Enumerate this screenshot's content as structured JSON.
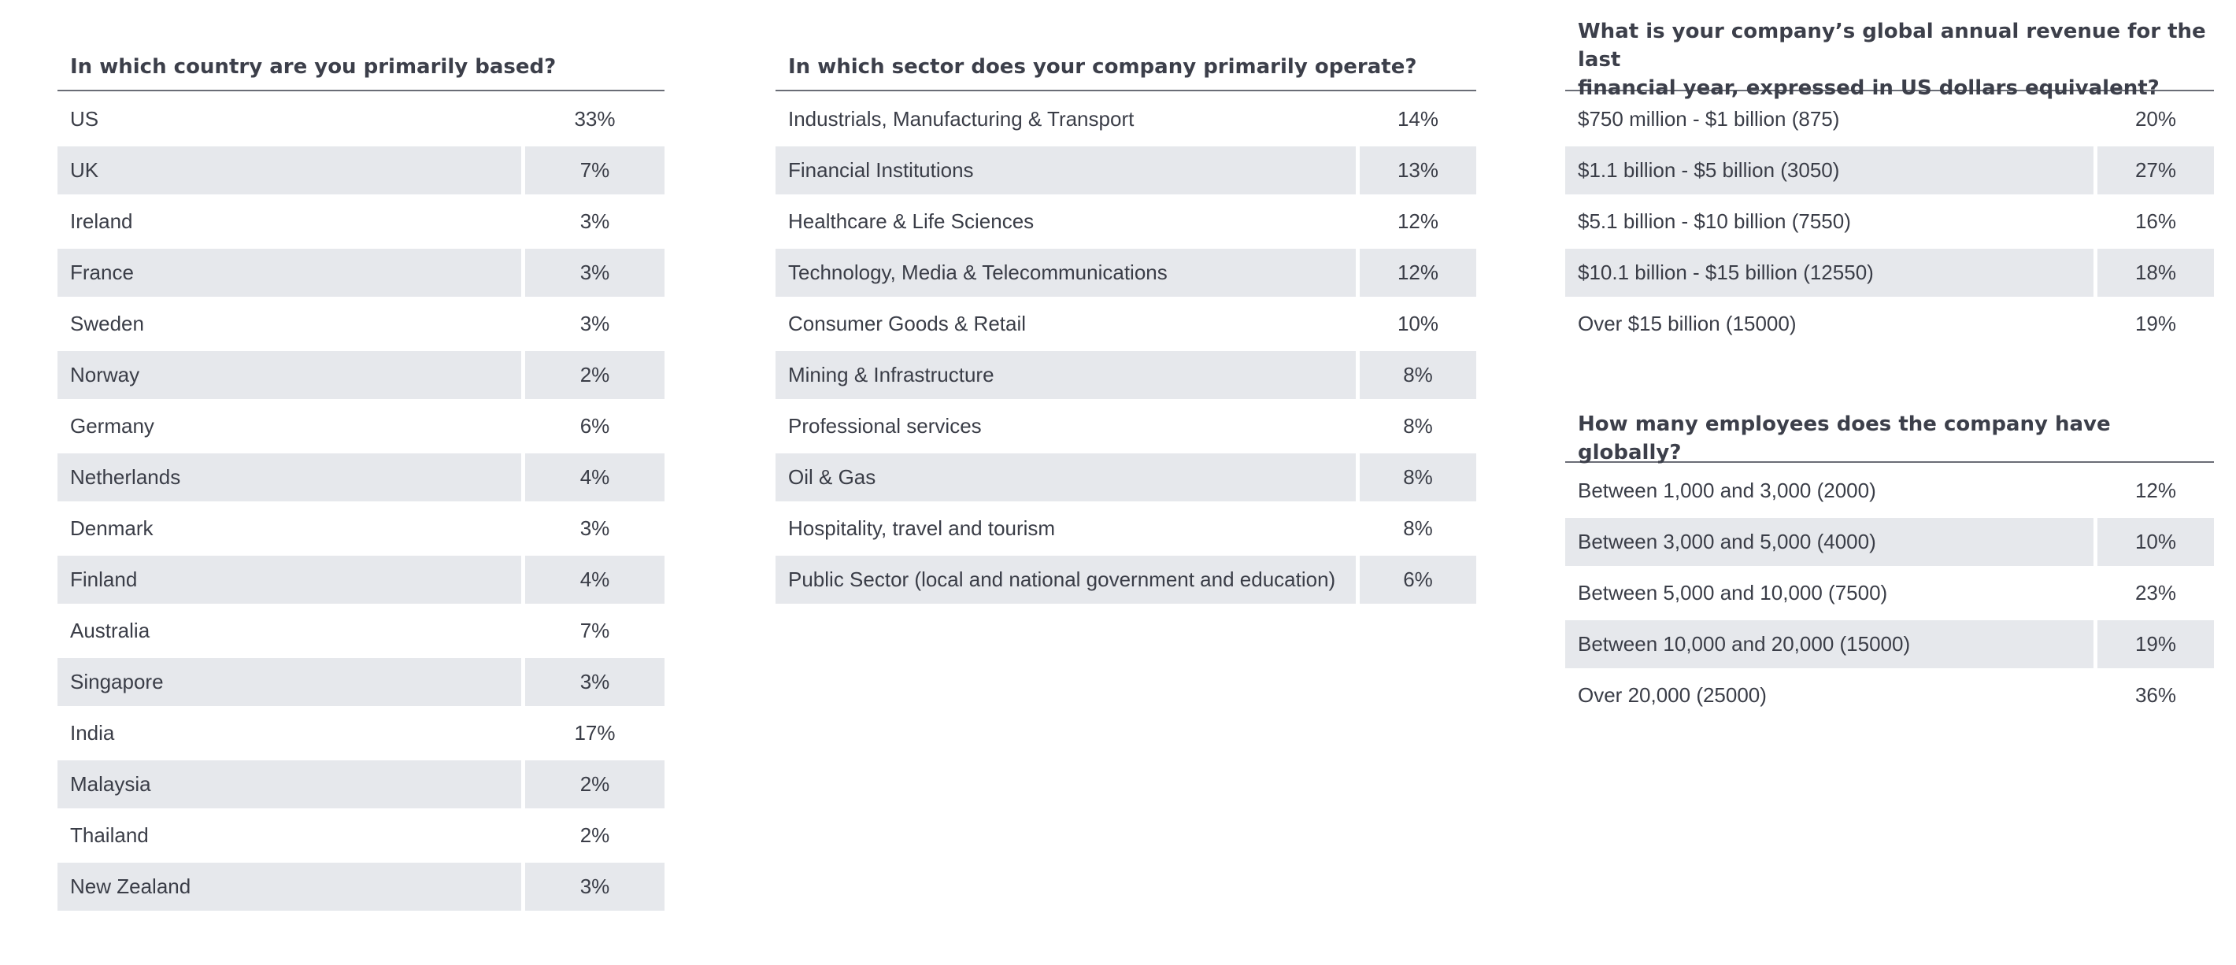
{
  "country": {
    "title": "In which country are you primarily based?",
    "rows": [
      {
        "label": "US",
        "value": "33%"
      },
      {
        "label": "UK",
        "value": "7%"
      },
      {
        "label": "Ireland",
        "value": "3%"
      },
      {
        "label": "France",
        "value": "3%"
      },
      {
        "label": "Sweden",
        "value": "3%"
      },
      {
        "label": "Norway",
        "value": "2%"
      },
      {
        "label": "Germany",
        "value": "6%"
      },
      {
        "label": "Netherlands",
        "value": "4%"
      },
      {
        "label": "Denmark",
        "value": "3%"
      },
      {
        "label": "Finland",
        "value": "4%"
      },
      {
        "label": "Australia",
        "value": "7%"
      },
      {
        "label": "Singapore",
        "value": "3%"
      },
      {
        "label": "India",
        "value": "17%"
      },
      {
        "label": "Malaysia",
        "value": "2%"
      },
      {
        "label": "Thailand",
        "value": "2%"
      },
      {
        "label": "New Zealand",
        "value": "3%"
      }
    ]
  },
  "sector": {
    "title": "In which sector does your company primarily operate?",
    "rows": [
      {
        "label": "Industrials, Manufacturing & Transport",
        "value": "14%"
      },
      {
        "label": "Financial Institutions",
        "value": "13%"
      },
      {
        "label": "Healthcare & Life Sciences",
        "value": "12%"
      },
      {
        "label": "Technology, Media & Telecommunications",
        "value": "12%"
      },
      {
        "label": "Consumer Goods & Retail",
        "value": "10%"
      },
      {
        "label": "Mining & Infrastructure",
        "value": "8%"
      },
      {
        "label": "Professional services",
        "value": "8%"
      },
      {
        "label": "Oil & Gas",
        "value": "8%"
      },
      {
        "label": "Hospitality, travel and tourism",
        "value": "8%"
      },
      {
        "label": "Public Sector (local and national government and education)",
        "value": "6%"
      }
    ]
  },
  "revenue": {
    "title_line1": "What is your company’s global annual revenue for the last",
    "title_line2": "financial year, expressed in US dollars equivalent?",
    "rows": [
      {
        "label": "$750 million - $1 billion (875)",
        "value": "20%"
      },
      {
        "label": "$1.1 billion - $5 billion (3050)",
        "value": "27%"
      },
      {
        "label": "$5.1 billion - $10 billion (7550)",
        "value": "16%"
      },
      {
        "label": "$10.1 billion - $15 billion (12550)",
        "value": "18%"
      },
      {
        "label": "Over $15 billion (15000)",
        "value": "19%"
      }
    ]
  },
  "employees": {
    "title": "How many employees does the company have globally?",
    "rows": [
      {
        "label": "Between 1,000 and 3,000 (2000)",
        "value": "12%"
      },
      {
        "label": "Between 3,000 and 5,000 (4000)",
        "value": "10%"
      },
      {
        "label": "Between 5,000 and 10,000 (7500)",
        "value": "23%"
      },
      {
        "label": "Between 10,000 and 20,000 (15000)",
        "value": "19%"
      },
      {
        "label": "Over 20,000 (25000)",
        "value": "36%"
      }
    ]
  },
  "colors": {
    "row_shade": "#e6e8ec",
    "rule": "#6a6d76",
    "text": "#3a3d47"
  }
}
